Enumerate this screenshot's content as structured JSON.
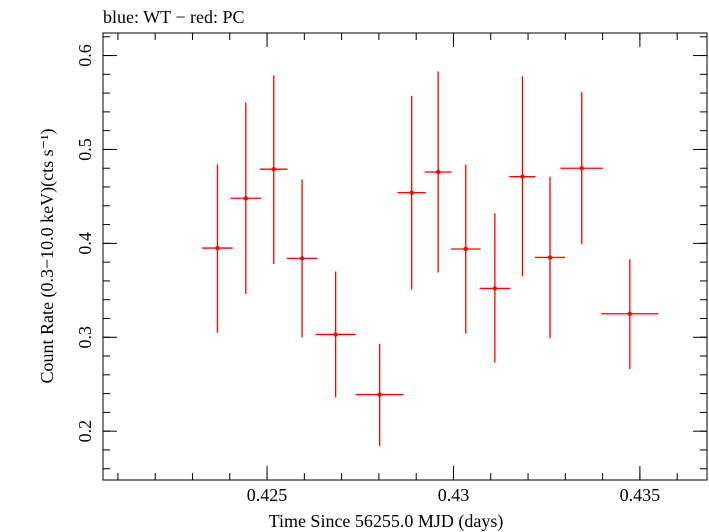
{
  "colors": {
    "series": "#ff0000",
    "axis": "#000000",
    "background": "#ffffff"
  },
  "chart_data": {
    "type": "scatter",
    "title": "blue: WT − red: PC",
    "xlabel": "Time Since 56255.0 MJD (days)",
    "ylabel": "Count Rate (0.3−10.0 keV)(cts s⁻¹)",
    "xlim": [
      0.4206,
      0.4368
    ],
    "ylim": [
      0.148,
      0.624
    ],
    "grid": false,
    "x_major_ticks": [
      0.425,
      0.43,
      0.435
    ],
    "x_tick_labels": [
      "0.425",
      "0.43",
      "0.435"
    ],
    "x_minor_step": 0.001,
    "y_major_ticks": [
      0.2,
      0.3,
      0.4,
      0.5,
      0.6
    ],
    "y_tick_labels": [
      "0.2",
      "0.3",
      "0.4",
      "0.5",
      "0.6"
    ],
    "y_minor_step": 0.02,
    "series": [
      {
        "name": "PC",
        "color": "#ff0000",
        "points": [
          {
            "x": 0.42367,
            "xerr": 0.00041,
            "y": 0.395,
            "ylo": 0.305,
            "yhi": 0.484
          },
          {
            "x": 0.42443,
            "xerr": 0.00041,
            "y": 0.448,
            "ylo": 0.346,
            "yhi": 0.55
          },
          {
            "x": 0.42518,
            "xerr": 0.00037,
            "y": 0.479,
            "ylo": 0.378,
            "yhi": 0.579
          },
          {
            "x": 0.42594,
            "xerr": 0.00041,
            "y": 0.384,
            "ylo": 0.3,
            "yhi": 0.468
          },
          {
            "x": 0.42684,
            "xerr": 0.00054,
            "y": 0.303,
            "ylo": 0.236,
            "yhi": 0.37
          },
          {
            "x": 0.42802,
            "xerr": 0.00064,
            "y": 0.239,
            "ylo": 0.184,
            "yhi": 0.293
          },
          {
            "x": 0.42888,
            "xerr": 0.00038,
            "y": 0.454,
            "ylo": 0.351,
            "yhi": 0.557
          },
          {
            "x": 0.42959,
            "xerr": 0.00036,
            "y": 0.476,
            "ylo": 0.369,
            "yhi": 0.583
          },
          {
            "x": 0.43033,
            "xerr": 0.0004,
            "y": 0.394,
            "ylo": 0.304,
            "yhi": 0.484
          },
          {
            "x": 0.43111,
            "xerr": 0.00041,
            "y": 0.352,
            "ylo": 0.273,
            "yhi": 0.432
          },
          {
            "x": 0.43185,
            "xerr": 0.00035,
            "y": 0.471,
            "ylo": 0.365,
            "yhi": 0.578
          },
          {
            "x": 0.43259,
            "xerr": 0.0004,
            "y": 0.385,
            "ylo": 0.299,
            "yhi": 0.471
          },
          {
            "x": 0.43344,
            "xerr": 0.00057,
            "y": 0.48,
            "ylo": 0.399,
            "yhi": 0.561
          },
          {
            "x": 0.43473,
            "xerr": 0.00077,
            "y": 0.325,
            "ylo": 0.266,
            "yhi": 0.383
          }
        ]
      }
    ]
  }
}
